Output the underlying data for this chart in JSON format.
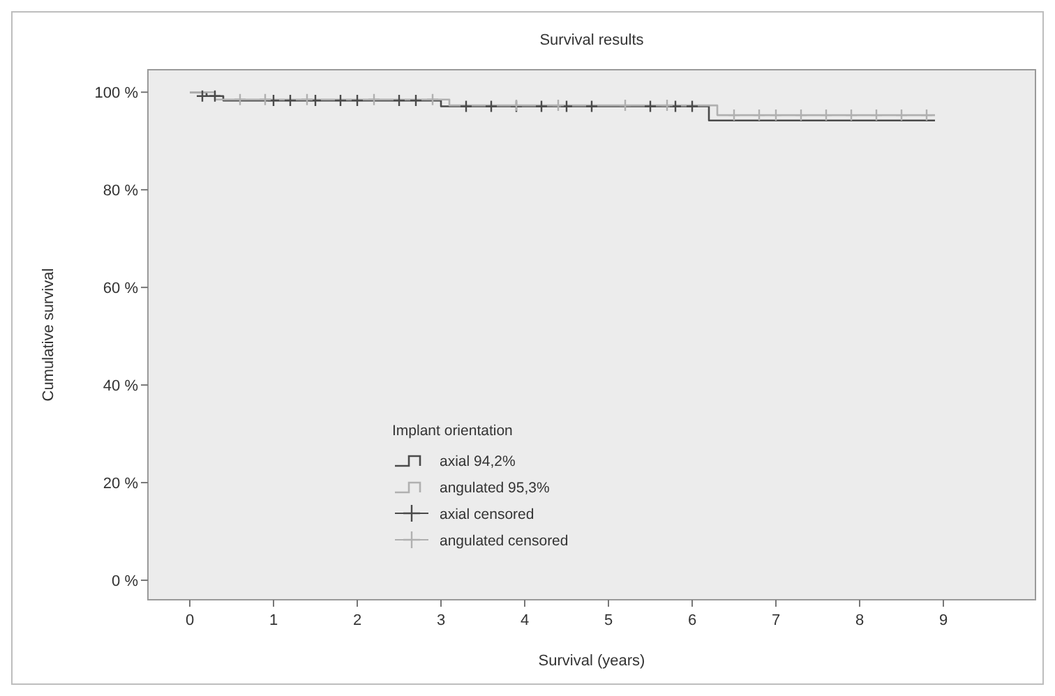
{
  "chart_data": {
    "type": "step",
    "title": "Survival results",
    "xlabel": "Survival (years)",
    "ylabel": "Cumulative survival",
    "legend_title": "Implant orientation",
    "legend": "bottom left",
    "grid": false,
    "xlim": [
      -0.5,
      10.1
    ],
    "xticks": [
      0,
      1,
      2,
      3,
      4,
      5,
      6,
      7,
      8,
      9
    ],
    "ylim": [
      -4,
      104.6
    ],
    "yticks": [
      {
        "value": 0,
        "label": "0 %"
      },
      {
        "value": 20,
        "label": "20 %"
      },
      {
        "value": 40,
        "label": "40 %"
      },
      {
        "value": 60,
        "label": "60 %"
      },
      {
        "value": 80,
        "label": "80 %"
      },
      {
        "value": 100,
        "label": "100 %"
      }
    ],
    "series": [
      {
        "name": "axial 94,2%",
        "color": "#4a4a4a",
        "x": [
          0,
          0.2,
          0.4,
          2.9,
          3.0,
          6.05,
          6.2,
          8.9
        ],
        "values": [
          100,
          99.2,
          98.3,
          98.3,
          97.1,
          97.1,
          94.2,
          94.2
        ]
      },
      {
        "name": "angulated 95,3%",
        "color": "#b0b0b0",
        "x": [
          0,
          0.3,
          2.8,
          3.1,
          6.0,
          6.3,
          8.9
        ],
        "values": [
          100,
          98.5,
          98.5,
          97.3,
          97.3,
          95.3,
          95.3
        ]
      },
      {
        "name": "axial censored",
        "type": "scatter",
        "marker": "cross",
        "color": "#4a4a4a",
        "x": [
          0.15,
          0.3,
          1.0,
          1.2,
          1.5,
          1.8,
          2.0,
          2.5,
          2.7,
          3.3,
          3.6,
          3.9,
          4.2,
          4.5,
          4.8,
          5.5,
          5.8,
          6.0
        ],
        "values": [
          99.2,
          99.2,
          98.3,
          98.3,
          98.3,
          98.3,
          98.3,
          98.3,
          98.3,
          97.1,
          97.1,
          97.1,
          97.1,
          97.1,
          97.1,
          97.1,
          97.1,
          97.1
        ]
      },
      {
        "name": "angulated censored",
        "type": "scatter",
        "marker": "cross",
        "color": "#b0b0b0",
        "x": [
          0.6,
          0.9,
          1.4,
          2.2,
          2.9,
          3.9,
          4.4,
          5.2,
          5.7,
          6.5,
          6.8,
          7.0,
          7.3,
          7.6,
          7.9,
          8.2,
          8.5,
          8.8
        ],
        "values": [
          98.5,
          98.5,
          98.5,
          98.5,
          98.5,
          97.3,
          97.3,
          97.3,
          97.3,
          95.3,
          95.3,
          95.3,
          95.3,
          95.3,
          95.3,
          95.3,
          95.3,
          95.3
        ]
      }
    ]
  }
}
